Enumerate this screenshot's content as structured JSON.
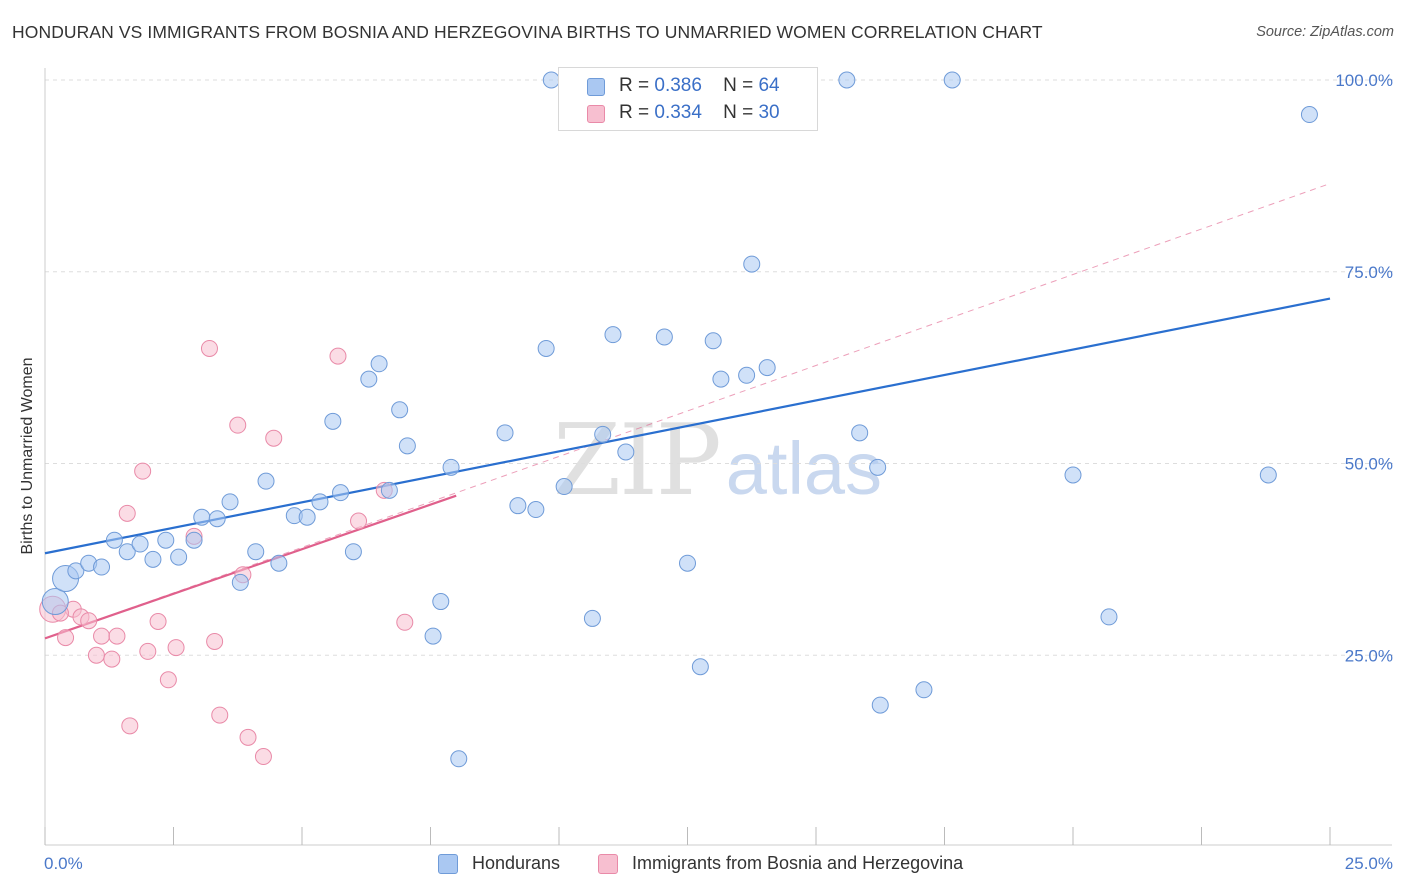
{
  "header": {
    "title": "HONDURAN VS IMMIGRANTS FROM BOSNIA AND HERZEGOVINA BIRTHS TO UNMARRIED WOMEN CORRELATION CHART",
    "source": "Source: ZipAtlas.com"
  },
  "watermark": {
    "zip": "ZIP",
    "atlas": "atlas"
  },
  "legend": {
    "rows": [
      {
        "r_label": "R =",
        "r_value": "0.386",
        "n_label": "N =",
        "n_value": "64",
        "color": "#aac8f2"
      },
      {
        "r_label": "R =",
        "r_value": "0.334",
        "n_label": "N =",
        "n_value": "30",
        "color": "#f7bfd0"
      }
    ]
  },
  "bottom_legend": {
    "series1": "Hondurans",
    "series2": "Immigrants from Bosnia and Herzegovina"
  },
  "colors": {
    "blue_fill": "#aac8f2",
    "blue_stroke": "#6f9bd8",
    "blue_line": "#2a6fcf",
    "pink_fill": "#f7bfd0",
    "pink_stroke": "#e98aa8",
    "pink_line": "#e0608c",
    "grid": "#dddddd",
    "axis_text": "#4a78c9"
  },
  "chart_data": {
    "type": "scatter",
    "title": "HONDURAN VS IMMIGRANTS FROM BOSNIA AND HERZEGOVINA BIRTHS TO UNMARRIED WOMEN CORRELATION CHART",
    "xlabel": "",
    "ylabel": "Births to Unmarried Women",
    "xlim": [
      0,
      25
    ],
    "ylim": [
      0,
      105
    ],
    "x_ticks": [
      "0.0%",
      "25.0%"
    ],
    "y_ticks": [
      {
        "value": 25,
        "label": "25.0%"
      },
      {
        "value": 50,
        "label": "50.0%"
      },
      {
        "value": 75,
        "label": "75.0%"
      },
      {
        "value": 100,
        "label": "100.0%"
      }
    ],
    "grid": true,
    "series": [
      {
        "name": "Hondurans",
        "color": "#aac8f2",
        "trend": {
          "x": [
            0,
            25
          ],
          "y": [
            38.3,
            71.5
          ],
          "style": "solid"
        },
        "points": [
          {
            "x": 0.2,
            "y": 32,
            "big": true
          },
          {
            "x": 0.4,
            "y": 35,
            "big": true
          },
          {
            "x": 0.6,
            "y": 36
          },
          {
            "x": 0.85,
            "y": 37
          },
          {
            "x": 1.1,
            "y": 36.5
          },
          {
            "x": 1.35,
            "y": 40
          },
          {
            "x": 1.6,
            "y": 38.5
          },
          {
            "x": 1.85,
            "y": 39.5
          },
          {
            "x": 2.1,
            "y": 37.5
          },
          {
            "x": 2.35,
            "y": 40
          },
          {
            "x": 2.6,
            "y": 37.8
          },
          {
            "x": 2.9,
            "y": 40
          },
          {
            "x": 3.05,
            "y": 43
          },
          {
            "x": 3.35,
            "y": 42.8
          },
          {
            "x": 3.6,
            "y": 45
          },
          {
            "x": 3.8,
            "y": 34.5
          },
          {
            "x": 4.1,
            "y": 38.5
          },
          {
            "x": 4.3,
            "y": 47.7
          },
          {
            "x": 4.55,
            "y": 37
          },
          {
            "x": 4.85,
            "y": 43.2
          },
          {
            "x": 5.1,
            "y": 43
          },
          {
            "x": 5.35,
            "y": 45
          },
          {
            "x": 5.6,
            "y": 55.5
          },
          {
            "x": 5.75,
            "y": 46.2
          },
          {
            "x": 6.0,
            "y": 38.5
          },
          {
            "x": 6.3,
            "y": 61
          },
          {
            "x": 6.5,
            "y": 63
          },
          {
            "x": 6.7,
            "y": 46.5
          },
          {
            "x": 6.9,
            "y": 57
          },
          {
            "x": 7.05,
            "y": 52.3
          },
          {
            "x": 7.55,
            "y": 27.5
          },
          {
            "x": 7.7,
            "y": 32
          },
          {
            "x": 7.9,
            "y": 49.5
          },
          {
            "x": 8.05,
            "y": 11.5
          },
          {
            "x": 8.95,
            "y": 54
          },
          {
            "x": 9.2,
            "y": 44.5
          },
          {
            "x": 9.55,
            "y": 44
          },
          {
            "x": 9.75,
            "y": 65
          },
          {
            "x": 9.85,
            "y": 100
          },
          {
            "x": 10.1,
            "y": 47
          },
          {
            "x": 10.65,
            "y": 29.8
          },
          {
            "x": 10.85,
            "y": 53.8
          },
          {
            "x": 11.05,
            "y": 66.8
          },
          {
            "x": 11.3,
            "y": 51.5
          },
          {
            "x": 11.85,
            "y": 100
          },
          {
            "x": 12.05,
            "y": 66.5
          },
          {
            "x": 12.5,
            "y": 37
          },
          {
            "x": 12.75,
            "y": 23.5
          },
          {
            "x": 13.0,
            "y": 66
          },
          {
            "x": 13.15,
            "y": 61
          },
          {
            "x": 13.65,
            "y": 61.5
          },
          {
            "x": 13.75,
            "y": 76
          },
          {
            "x": 14.05,
            "y": 62.5
          },
          {
            "x": 15.6,
            "y": 100
          },
          {
            "x": 15.85,
            "y": 54
          },
          {
            "x": 16.2,
            "y": 49.5
          },
          {
            "x": 16.25,
            "y": 18.5
          },
          {
            "x": 17.1,
            "y": 20.5
          },
          {
            "x": 17.65,
            "y": 100
          },
          {
            "x": 20.0,
            "y": 48.5
          },
          {
            "x": 20.7,
            "y": 30
          },
          {
            "x": 23.8,
            "y": 48.5
          },
          {
            "x": 24.6,
            "y": 95.5
          },
          {
            "x": 11.2,
            "y": 100
          }
        ]
      },
      {
        "name": "Immigrants from Bosnia and Herzegovina",
        "color": "#f7bfd0",
        "trend": {
          "x": [
            0,
            8
          ],
          "y": [
            27.2,
            45.8
          ],
          "style": "solid",
          "extended_to": {
            "x": 25,
            "y": 86.5
          }
        },
        "points": [
          {
            "x": 0.15,
            "y": 31,
            "big": true
          },
          {
            "x": 0.4,
            "y": 27.3
          },
          {
            "x": 0.55,
            "y": 31
          },
          {
            "x": 0.7,
            "y": 30
          },
          {
            "x": 0.85,
            "y": 29.5
          },
          {
            "x": 1.0,
            "y": 25
          },
          {
            "x": 1.1,
            "y": 27.5
          },
          {
            "x": 1.3,
            "y": 24.5
          },
          {
            "x": 1.4,
            "y": 27.5
          },
          {
            "x": 1.6,
            "y": 43.5
          },
          {
            "x": 1.65,
            "y": 15.8
          },
          {
            "x": 1.9,
            "y": 49
          },
          {
            "x": 2.0,
            "y": 25.5
          },
          {
            "x": 2.2,
            "y": 29.4
          },
          {
            "x": 2.4,
            "y": 21.8
          },
          {
            "x": 2.55,
            "y": 26
          },
          {
            "x": 3.2,
            "y": 65
          },
          {
            "x": 3.3,
            "y": 26.8
          },
          {
            "x": 3.4,
            "y": 17.2
          },
          {
            "x": 3.75,
            "y": 55
          },
          {
            "x": 3.85,
            "y": 35.5
          },
          {
            "x": 3.95,
            "y": 14.3
          },
          {
            "x": 4.25,
            "y": 11.8
          },
          {
            "x": 4.45,
            "y": 53.3
          },
          {
            "x": 5.7,
            "y": 64
          },
          {
            "x": 6.1,
            "y": 42.5
          },
          {
            "x": 6.6,
            "y": 46.5
          },
          {
            "x": 7.0,
            "y": 29.3
          },
          {
            "x": 2.9,
            "y": 40.5
          },
          {
            "x": 0.3,
            "y": 30.5
          }
        ]
      }
    ]
  }
}
